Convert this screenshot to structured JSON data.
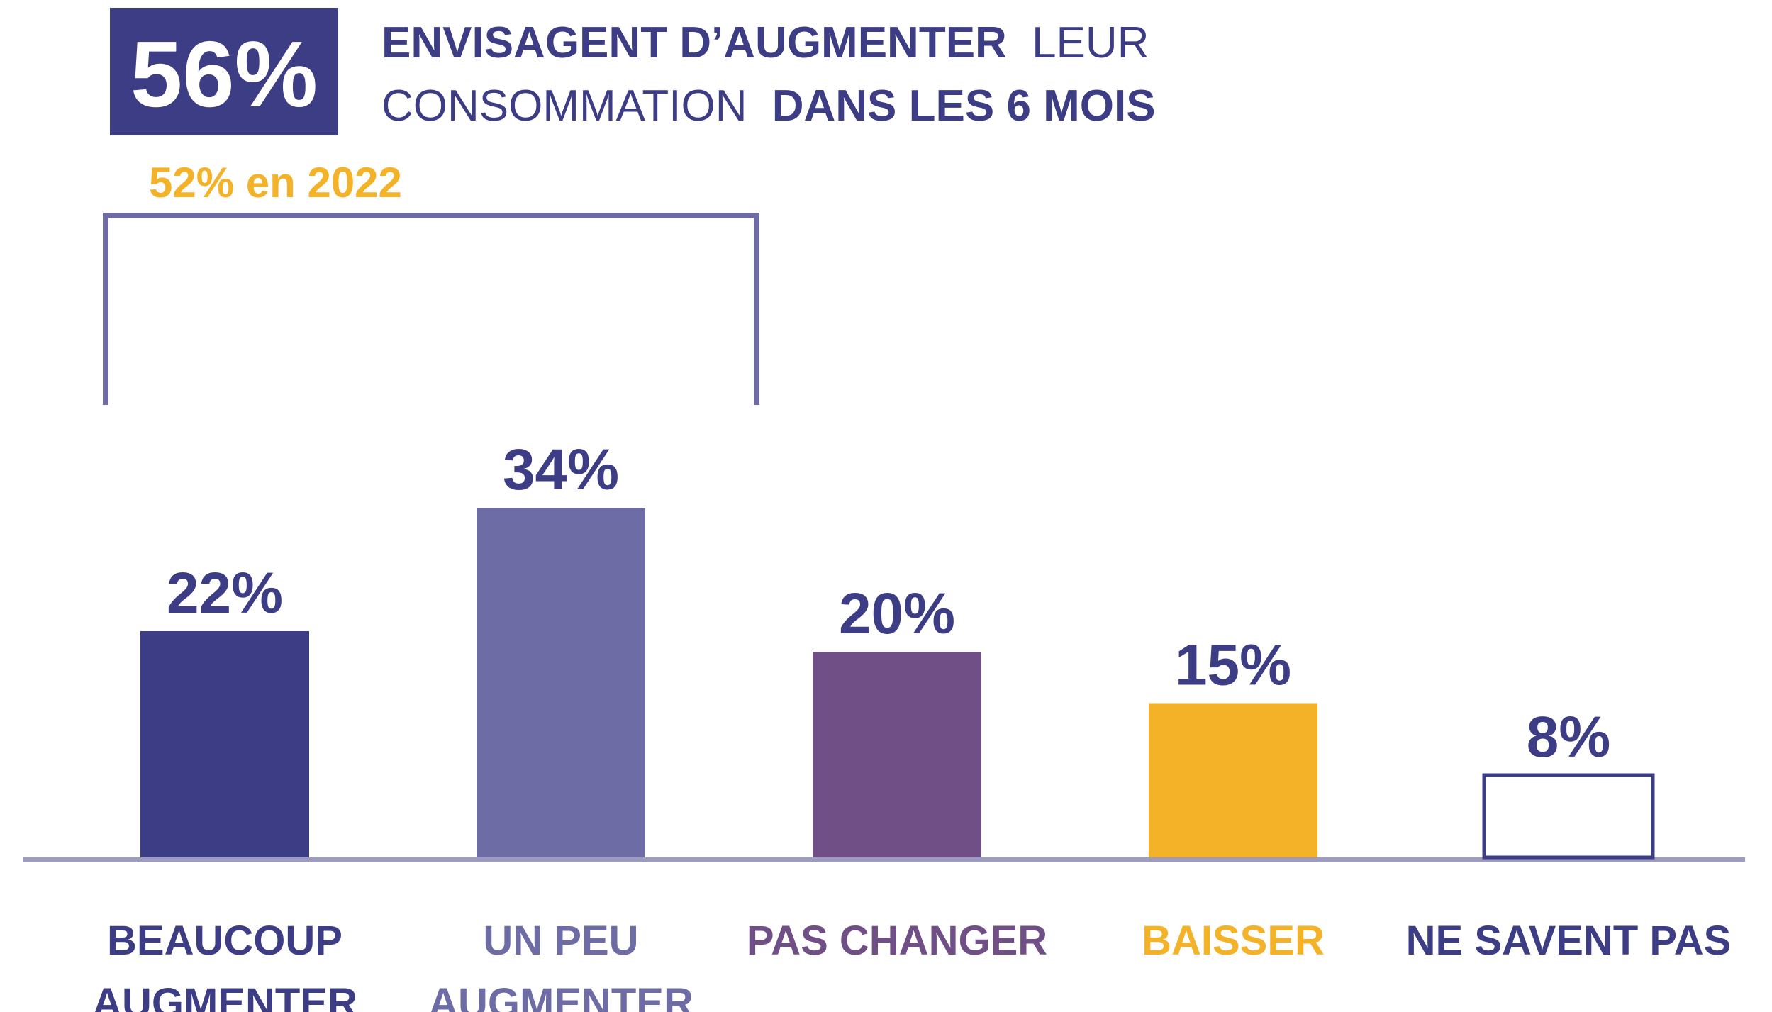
{
  "chart_data": {
    "type": "bar",
    "headline": "56%",
    "title": {
      "line1": [
        "ENVISAGENT D’AUGMENTER",
        "LEUR"
      ],
      "line2": [
        "CONSOMMATION",
        "DANS LES 6 MOIS"
      ]
    },
    "annotation": "52% en 2022",
    "categories": [
      "BEAUCOUP AUGMENTER",
      "UN PEU AUGMENTER",
      "PAS CHANGER",
      "BAISSER",
      "NE SAVENT PAS"
    ],
    "values": [
      22,
      34,
      20,
      15,
      8
    ],
    "value_labels": [
      "22%",
      "34%",
      "20%",
      "15%",
      "8%"
    ],
    "colors": [
      "#3d3d85",
      "#6d6ca5",
      "#6f4f86",
      "#f3b228",
      "#ffffff"
    ]
  }
}
